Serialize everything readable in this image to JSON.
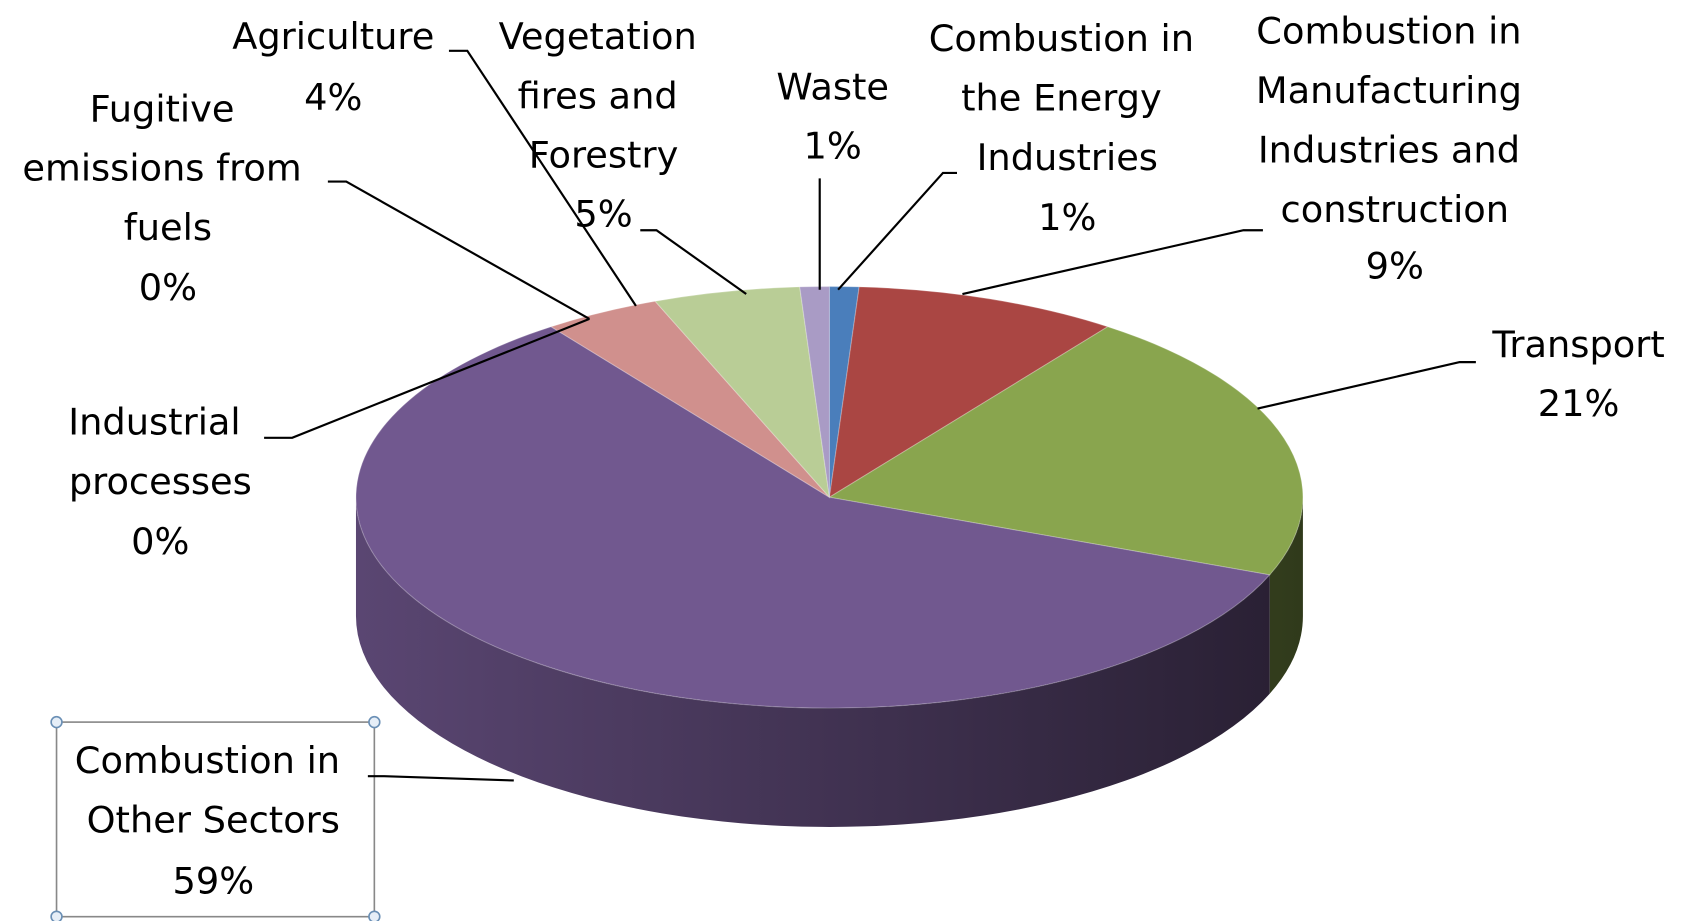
{
  "chart_data": {
    "type": "pie3d",
    "categories": [
      "Combustion in the Energy Industries",
      "Combustion in Manufacturing Industries and construction",
      "Transport",
      "Combustion in Other Sectors",
      "Industrial processes",
      "Fugitive emissions from fuels",
      "Agriculture",
      "Vegetation fires and Forestry",
      "Waste"
    ],
    "values": [
      1,
      9,
      21,
      59,
      0,
      0,
      4,
      5,
      1
    ],
    "value_labels": [
      "1%",
      "9%",
      "21%",
      "59%",
      "0%",
      "0%",
      "4%",
      "5%",
      "1%"
    ],
    "colors": [
      "#4a7ebb",
      "#aa4643",
      "#89a54e",
      "#71588f",
      "#4198af",
      "#db843d",
      "#d0908d",
      "#b9cd96",
      "#a99bc5"
    ]
  }
}
